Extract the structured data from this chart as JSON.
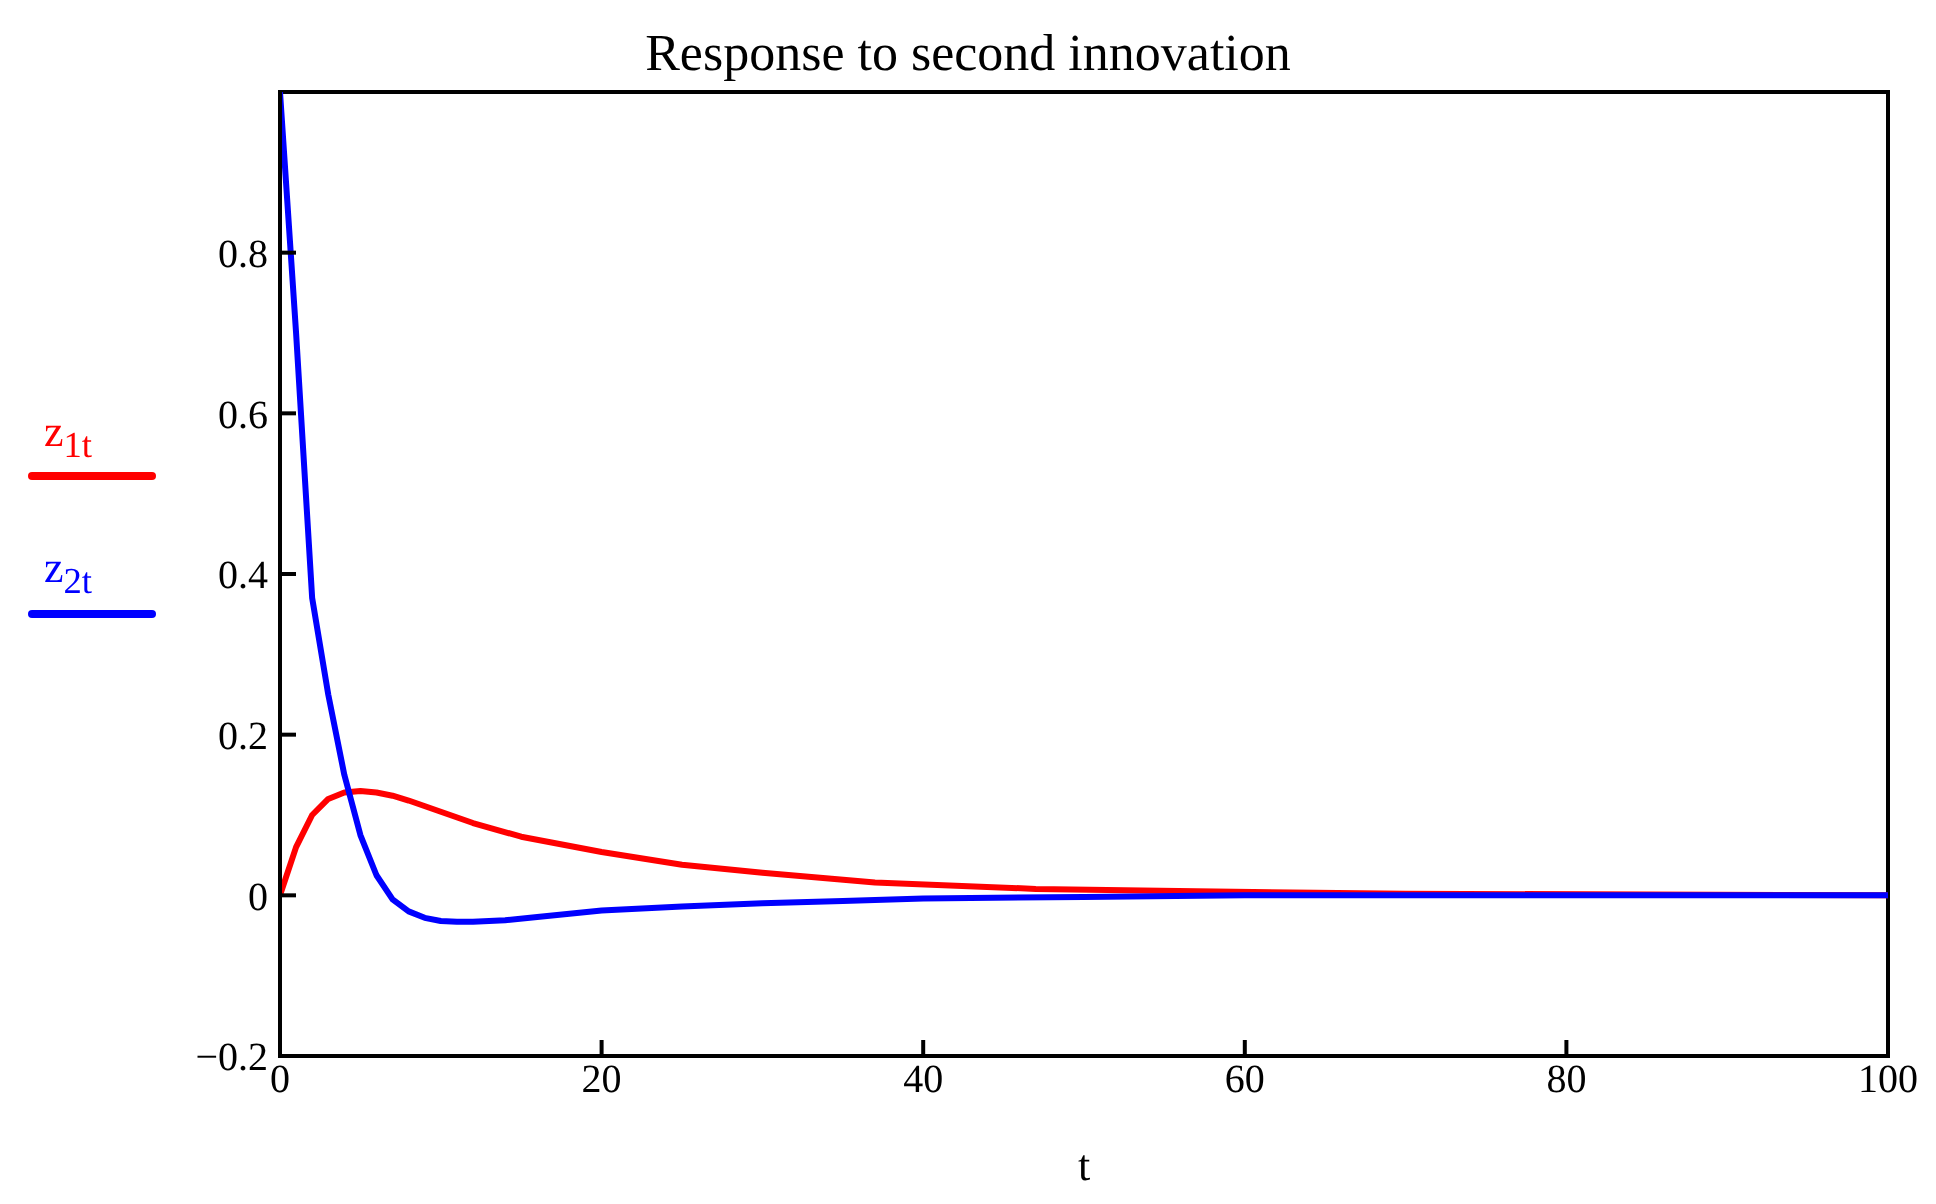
{
  "chart_data": {
    "type": "line",
    "title": "Response to second innovation",
    "xlabel": "t",
    "legend": "left",
    "grid": false,
    "marker": "none",
    "line_style": "solid",
    "xlim": [
      0,
      100
    ],
    "xticks": [
      0,
      20,
      40,
      60,
      80,
      100
    ],
    "ylim": [
      -0.2,
      1
    ],
    "yticks": [
      -0.2,
      0,
      0.2,
      0.4,
      0.6,
      0.8
    ],
    "series": [
      {
        "name": "z$_{1t}$",
        "color": "#ff0000",
        "x": [
          0,
          1,
          2,
          3,
          4,
          5,
          6,
          7,
          8,
          10,
          12,
          15,
          20,
          25,
          30,
          37,
          47,
          57,
          70,
          85,
          100
        ],
        "values": [
          0,
          0.06,
          0.1,
          0.12,
          0.128,
          0.13,
          0.128,
          0.124,
          0.118,
          0.104,
          0.09,
          0.073,
          0.054,
          0.038,
          0.028,
          0.016,
          0.008,
          0.005,
          0.002,
          0.001,
          0
        ]
      },
      {
        "name": "z$_{2t}$",
        "color": "#0000ff",
        "x": [
          0,
          1,
          2,
          3,
          4,
          5,
          6,
          7,
          8,
          9,
          10,
          11,
          12,
          14,
          16,
          20,
          25,
          30,
          35,
          40,
          50,
          60,
          80,
          100
        ],
        "values": [
          1,
          0.7,
          0.37,
          0.25,
          0.15,
          0.075,
          0.025,
          -0.005,
          -0.02,
          -0.028,
          -0.032,
          -0.033,
          -0.033,
          -0.031,
          -0.027,
          -0.019,
          -0.014,
          -0.01,
          -0.007,
          -0.004,
          -0.002,
          0,
          0,
          0
        ]
      }
    ]
  }
}
